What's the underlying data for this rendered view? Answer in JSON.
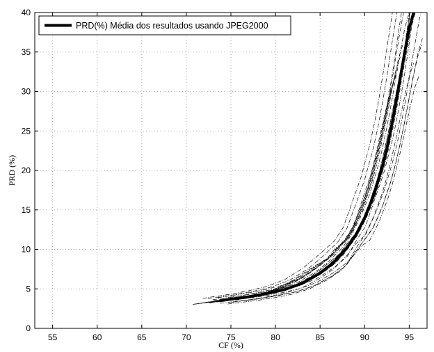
{
  "chart_data": {
    "type": "line",
    "title": "",
    "xlabel": "CF (%)",
    "ylabel": "PRD (%)",
    "xlim": [
      53,
      97
    ],
    "ylim": [
      0,
      40
    ],
    "xticks": [
      55,
      60,
      65,
      70,
      75,
      80,
      85,
      90,
      95
    ],
    "yticks": [
      0,
      5,
      10,
      15,
      20,
      25,
      30,
      35,
      40
    ],
    "grid": true,
    "legend": {
      "position": "top-left",
      "entries": [
        "PRD(%) Média dos resultados usando JPEG2000"
      ]
    },
    "series": [
      {
        "name": "PRD(%) Média dos resultados usando JPEG2000",
        "style": "solid-thick",
        "color": "#000000",
        "x": [
          73.8,
          75,
          77,
          79,
          81,
          83,
          85,
          86.5,
          88,
          89,
          90,
          91,
          92,
          92.5,
          93,
          93.5,
          94,
          94.5,
          95,
          95.5
        ],
        "y": [
          3.5,
          3.7,
          4.0,
          4.4,
          4.9,
          5.7,
          7.0,
          8.3,
          10.2,
          11.8,
          14.0,
          16.8,
          20.5,
          22.8,
          25.5,
          28.5,
          31.8,
          35.0,
          38.0,
          40.0
        ]
      }
    ],
    "background_series": {
      "style": "dash-dot-thin",
      "color": "#000000",
      "count": 24,
      "x_base": [
        73.8,
        75,
        77,
        79,
        81,
        83,
        85,
        86.5,
        88,
        89,
        90,
        91,
        92,
        92.5,
        93,
        93.5,
        94,
        94.5,
        95,
        95.5
      ],
      "y_base": [
        3.5,
        3.7,
        4.0,
        4.4,
        4.9,
        5.7,
        7.0,
        8.3,
        10.2,
        11.8,
        14.0,
        16.8,
        20.5,
        22.8,
        25.5,
        28.5,
        31.8,
        35.0,
        38.0,
        40.0
      ],
      "x_shifts": [
        -2.2,
        -1.8,
        -1.5,
        -1.2,
        -1.0,
        -0.8,
        -0.6,
        -0.4,
        -0.2,
        0.0,
        0.2,
        0.4,
        0.6,
        0.8,
        1.0,
        1.2,
        -1.4,
        -0.9,
        -0.3,
        0.3,
        0.9,
        1.1,
        -2.0,
        -0.5
      ],
      "y_scales": [
        0.78,
        0.82,
        0.86,
        0.9,
        1.12,
        0.88,
        1.06,
        0.94,
        1.18,
        0.84,
        1.0,
        1.1,
        0.8,
        1.2,
        0.92,
        1.04,
        1.14,
        0.86,
        0.96,
        1.08,
        0.9,
        1.16,
        0.8,
        1.0
      ]
    }
  }
}
